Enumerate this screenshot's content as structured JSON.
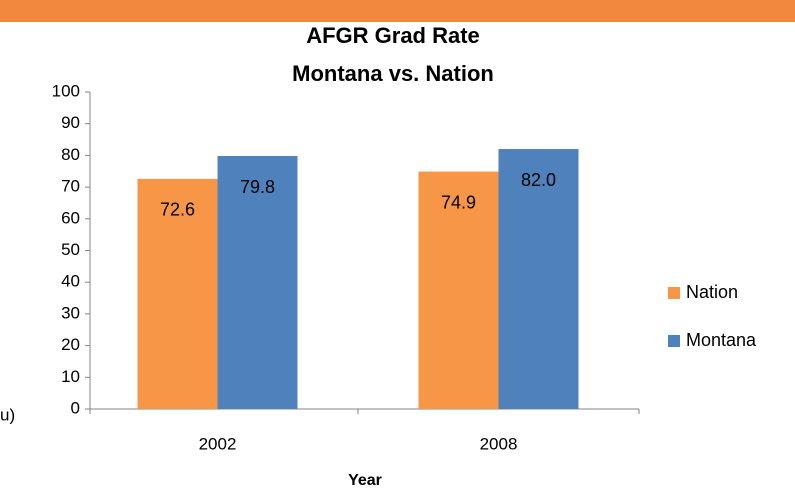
{
  "chart_data": {
    "type": "bar",
    "title": [
      "AFGR Grad Rate",
      "Montana vs. Nation"
    ],
    "annotation": "u)",
    "x_label": "Year",
    "categories": [
      "2002",
      "2008"
    ],
    "series": [
      {
        "name": "Nation",
        "color": "#f79646",
        "values": [
          72.6,
          74.9
        ],
        "value_labels": [
          "72.6",
          "74.9"
        ]
      },
      {
        "name": "Montana",
        "color": "#4f81bd",
        "values": [
          79.8,
          82.0
        ],
        "value_labels": [
          "79.8",
          "82.0"
        ]
      }
    ],
    "ylim": [
      0,
      100
    ],
    "yticks": [
      0,
      10,
      20,
      30,
      40,
      50,
      60,
      70,
      80,
      90,
      100
    ],
    "legend": "right",
    "grid": false
  }
}
